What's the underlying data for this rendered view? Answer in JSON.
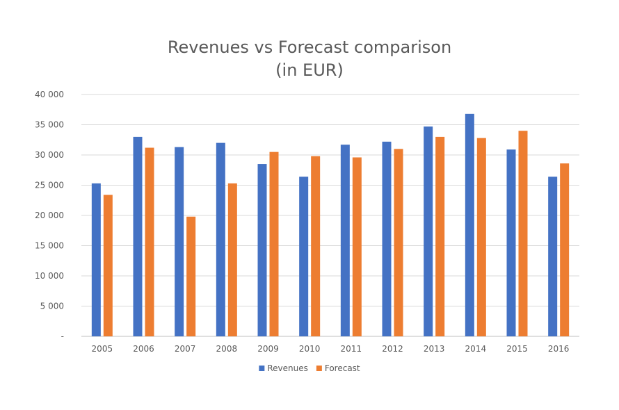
{
  "chart_data": {
    "type": "bar",
    "title": "Revenues vs Forecast comparison",
    "subtitle": "(in EUR)",
    "xlabel": "",
    "ylabel": "",
    "categories": [
      "2005",
      "2006",
      "2007",
      "2008",
      "2009",
      "2010",
      "2011",
      "2012",
      "2013",
      "2014",
      "2015",
      "2016"
    ],
    "series": [
      {
        "name": "Revenues",
        "color": "#4472c4",
        "values": [
          25300,
          33000,
          31300,
          32000,
          28500,
          26400,
          31700,
          32200,
          34700,
          36800,
          30900,
          26400
        ]
      },
      {
        "name": "Forecast",
        "color": "#ed7d31",
        "values": [
          23400,
          31200,
          19800,
          25300,
          30500,
          29800,
          29600,
          31000,
          33000,
          32800,
          34000,
          28600
        ]
      }
    ],
    "ylim": [
      0,
      40000
    ],
    "yticks": [
      0,
      5000,
      10000,
      15000,
      20000,
      25000,
      30000,
      35000,
      40000
    ],
    "ytick_labels": [
      "-",
      "5 000",
      "10 000",
      "15 000",
      "20 000",
      "25 000",
      "30 000",
      "35 000",
      "40 000"
    ],
    "grid": true,
    "legend_position": "bottom"
  }
}
